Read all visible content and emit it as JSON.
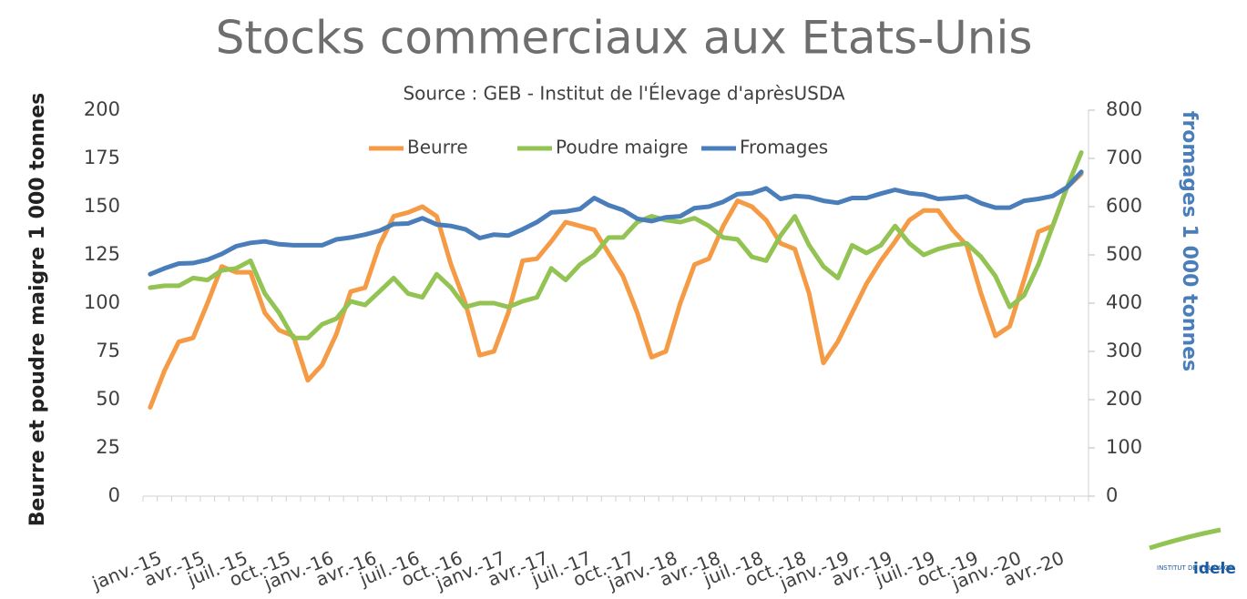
{
  "chart_data": {
    "type": "line",
    "title": "Stocks commerciaux aux Etats-Unis",
    "subtitle": "Source : GEB - Institut de l'Élevage d'aprèsUSDA",
    "ylabel": "Beurre et poudre maigre 1 000 tonnes",
    "y2label": "fromages 1 000 tonnes",
    "legend": "top",
    "categories": [
      "janv.-15",
      null,
      null,
      "avr.-15",
      null,
      null,
      "juil.-15",
      null,
      null,
      "oct.-15",
      null,
      null,
      "janv.-16",
      null,
      null,
      "avr.-16",
      null,
      null,
      "juil.-16",
      null,
      null,
      "oct.-16",
      null,
      null,
      "janv.-17",
      null,
      null,
      "avr.-17",
      null,
      null,
      "juil.-17",
      null,
      null,
      "oct.-17",
      null,
      null,
      "janv.-18",
      null,
      null,
      "avr.-18",
      null,
      null,
      "juil.-18",
      null,
      null,
      "oct.-18",
      null,
      null,
      "janv.-19",
      null,
      null,
      "avr.-19",
      null,
      null,
      "juil.-19",
      null,
      null,
      "oct.-19",
      null,
      null,
      "janv.-20",
      null,
      null,
      "avr.-20",
      null,
      null
    ],
    "series": [
      {
        "name": "Beurre",
        "color": "#f59a45",
        "values": [
          46,
          65,
          80,
          82,
          100,
          119,
          116,
          116,
          95,
          86,
          83,
          60,
          68,
          84,
          106,
          108,
          130,
          145,
          147,
          150,
          145,
          120,
          100,
          73,
          75,
          95,
          122,
          123,
          132,
          142,
          140,
          138,
          126,
          114,
          95,
          72,
          75,
          100,
          120,
          123,
          140,
          153,
          150,
          143,
          131,
          128,
          105,
          69,
          80,
          95,
          110,
          122,
          132,
          143,
          148,
          148,
          138,
          130,
          105,
          83,
          88,
          112,
          137,
          140,
          160,
          167
        ]
      },
      {
        "name": "Poudre maigre",
        "color": "#92c353",
        "values": [
          108,
          109,
          109,
          113,
          112,
          117,
          118,
          122,
          105,
          95,
          82,
          82,
          89,
          92,
          101,
          99,
          106,
          113,
          105,
          103,
          115,
          108,
          98,
          100,
          100,
          98,
          101,
          103,
          118,
          112,
          120,
          125,
          134,
          134,
          142,
          145,
          143,
          142,
          144,
          140,
          134,
          133,
          124,
          122,
          135,
          145,
          130,
          119,
          113,
          130,
          126,
          130,
          140,
          131,
          125,
          128,
          130,
          131,
          124,
          114,
          98,
          104,
          120,
          140,
          160,
          178
        ]
      },
      {
        "name": "Fromages",
        "color": "#4a7ebb",
        "axis": "y2",
        "values": [
          460,
          472,
          482,
          483,
          490,
          502,
          518,
          525,
          528,
          522,
          520,
          520,
          520,
          532,
          536,
          542,
          550,
          564,
          565,
          576,
          563,
          560,
          553,
          535,
          542,
          540,
          553,
          568,
          588,
          590,
          595,
          618,
          603,
          593,
          575,
          570,
          578,
          580,
          597,
          600,
          610,
          626,
          628,
          638,
          616,
          622,
          620,
          612,
          608,
          618,
          618,
          627,
          635,
          628,
          625,
          616,
          618,
          621,
          607,
          598,
          598,
          612,
          616,
          622,
          640,
          672
        ]
      }
    ],
    "ylim": [
      0,
      200
    ],
    "yticks": [
      0,
      25,
      50,
      75,
      100,
      125,
      150,
      175,
      200
    ],
    "y2lim": [
      0,
      800
    ],
    "y2ticks": [
      0,
      100,
      200,
      300,
      400,
      500,
      600,
      700,
      800
    ],
    "grid": false
  },
  "logo": {
    "small": "INSTITUT DE L'ÉLEVAGE",
    "brand": "idele"
  }
}
